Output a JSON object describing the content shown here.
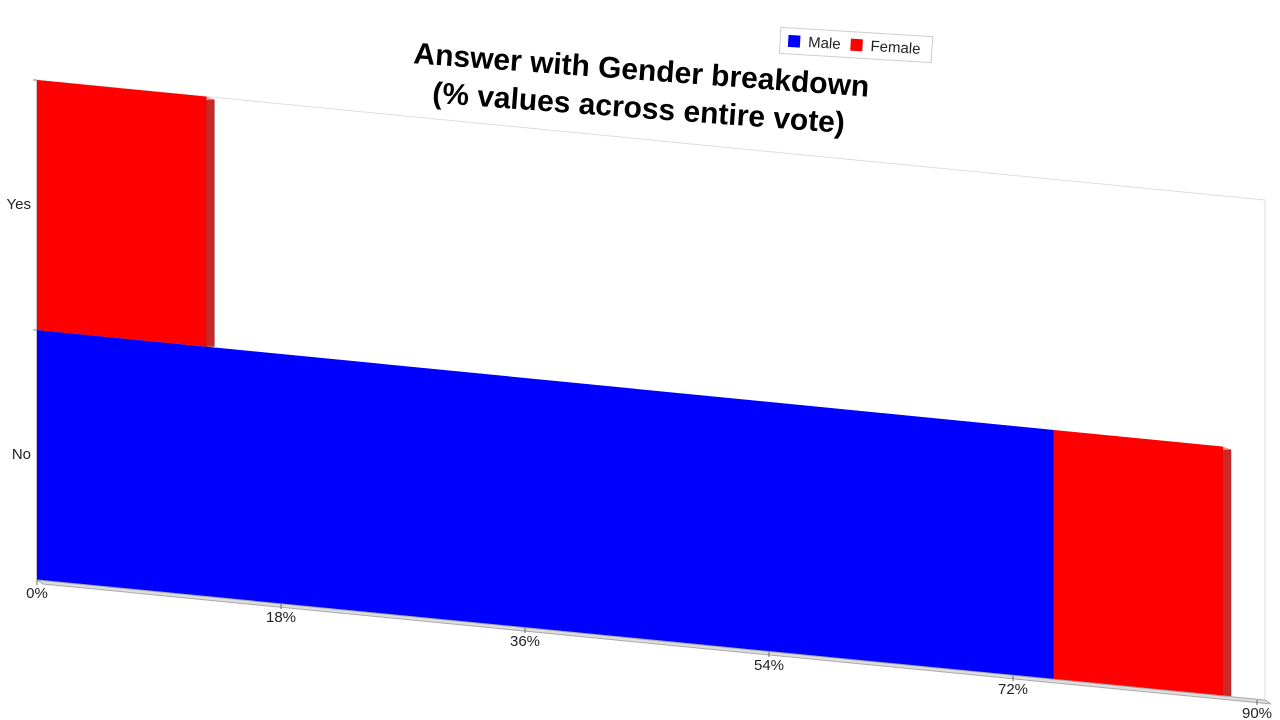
{
  "chart_data": {
    "type": "stacked-bar-3d",
    "title": [
      "Answer with Gender breakdown",
      "(% values across entire vote)"
    ],
    "categories": [
      "No",
      "Yes"
    ],
    "series": [
      {
        "name": "Male",
        "color": "#0000ff",
        "values": [
          75,
          0
        ]
      },
      {
        "name": "Female",
        "color": "#ff0000",
        "values": [
          12.5,
          12.5
        ]
      }
    ],
    "xlim": [
      0,
      90
    ],
    "xticks": [
      {
        "value": 0,
        "label": "0%"
      },
      {
        "value": 18,
        "label": "18%"
      },
      {
        "value": 36,
        "label": "36%"
      },
      {
        "value": 54,
        "label": "54%"
      },
      {
        "value": 72,
        "label": "72%"
      },
      {
        "value": 90,
        "label": "90%"
      }
    ],
    "legend": "top"
  }
}
